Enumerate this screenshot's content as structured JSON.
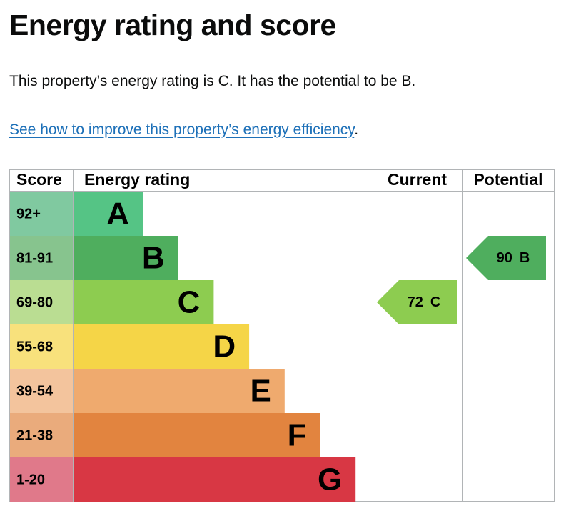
{
  "header": {
    "title": "Energy rating and score"
  },
  "intro": "This property’s energy rating is C. It has the potential to be B.",
  "link": {
    "text": "See how to improve this property’s energy efficiency",
    "suffix": "."
  },
  "table": {
    "headers": [
      "Score",
      "Energy rating",
      "Current",
      "Potential"
    ],
    "bands": [
      {
        "score": "92+",
        "letter": "A",
        "color": "#55c485",
        "score_color": "#80c9a0"
      },
      {
        "score": "81-91",
        "letter": "B",
        "color": "#4fae5e",
        "score_color": "#87c48e"
      },
      {
        "score": "69-80",
        "letter": "C",
        "color": "#8dcc50",
        "score_color": "#badd92"
      },
      {
        "score": "55-68",
        "letter": "D",
        "color": "#f5d547",
        "score_color": "#f8e17c"
      },
      {
        "score": "39-54",
        "letter": "E",
        "color": "#efaa6e",
        "score_color": "#f3c49d"
      },
      {
        "score": "21-38",
        "letter": "F",
        "color": "#e2843f",
        "score_color": "#eaab7c"
      },
      {
        "score": "1-20",
        "letter": "G",
        "color": "#d83744",
        "score_color": "#e0798a"
      }
    ],
    "current": {
      "score": 72,
      "letter": "C"
    },
    "potential": {
      "score": 90,
      "letter": "B"
    }
  }
}
